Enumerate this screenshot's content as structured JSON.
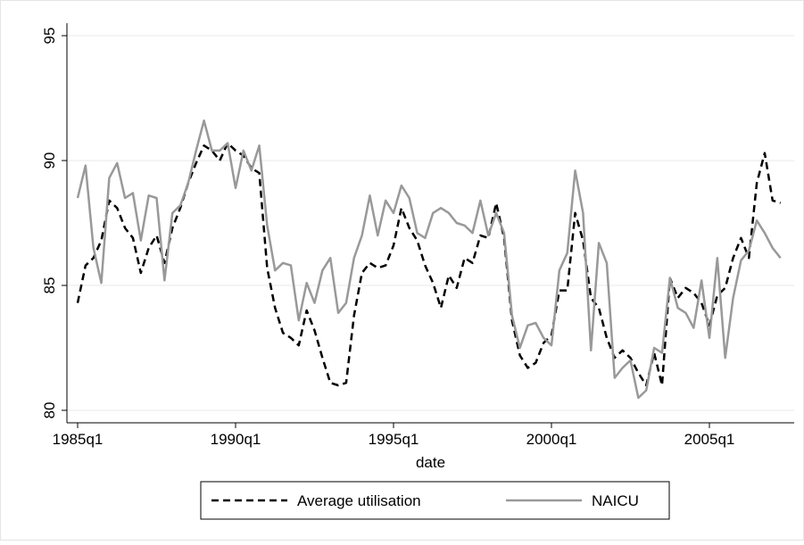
{
  "chart_data": {
    "type": "line",
    "categories": [
      "1985q1",
      null,
      null,
      null,
      null,
      null,
      null,
      null,
      null,
      null,
      null,
      null,
      null,
      null,
      null,
      null,
      null,
      null,
      null,
      null,
      "1990q1",
      null,
      null,
      null,
      null,
      null,
      null,
      null,
      null,
      null,
      null,
      null,
      null,
      null,
      null,
      null,
      null,
      null,
      null,
      null,
      "1995q1",
      null,
      null,
      null,
      null,
      null,
      null,
      null,
      null,
      null,
      null,
      null,
      null,
      null,
      null,
      null,
      null,
      null,
      null,
      null,
      "2000q1",
      null,
      null,
      null,
      null,
      null,
      null,
      null,
      null,
      null,
      null,
      null,
      null,
      null,
      null,
      null,
      null,
      null,
      null,
      null,
      "2005q1",
      null,
      null,
      null,
      null,
      null,
      null,
      null,
      null,
      null
    ],
    "x_label": "date",
    "series": [
      {
        "name": "Average utilisation",
        "color": "#000000",
        "style": "dash",
        "values": [
          84.3,
          85.8,
          86.1,
          86.8,
          88.4,
          88.1,
          87.3,
          86.9,
          85.5,
          86.5,
          87.0,
          85.9,
          87.3,
          88.1,
          89.1,
          89.9,
          90.6,
          90.4,
          90.0,
          90.7,
          90.4,
          90.2,
          89.7,
          89.5,
          85.7,
          84.1,
          83.1,
          82.9,
          82.6,
          84.0,
          83.2,
          82.1,
          81.1,
          81.0,
          81.1,
          83.8,
          85.5,
          85.9,
          85.7,
          85.8,
          86.6,
          88.1,
          87.3,
          86.8,
          85.8,
          85.1,
          84.1,
          85.4,
          84.9,
          86.1,
          85.9,
          87.0,
          86.9,
          88.3,
          86.9,
          83.6,
          82.2,
          81.7,
          81.9,
          82.7,
          83.0,
          84.8,
          84.8,
          87.9,
          86.8,
          84.5,
          84.1,
          82.9,
          82.1,
          82.4,
          82.1,
          81.5,
          81.0,
          82.3,
          81.0,
          85.3,
          84.5,
          84.9,
          84.7,
          84.3,
          83.4,
          84.6,
          84.9,
          86.1,
          86.9,
          86.1,
          89.1,
          90.3,
          88.4,
          88.3
        ]
      },
      {
        "name": "NAICU",
        "color": "#999999",
        "style": "solid",
        "values": [
          88.5,
          89.8,
          86.5,
          85.1,
          89.3,
          89.9,
          88.5,
          88.7,
          86.8,
          88.6,
          88.5,
          85.2,
          87.9,
          88.2,
          89.1,
          90.4,
          91.6,
          90.4,
          90.4,
          90.7,
          88.9,
          90.4,
          89.6,
          90.6,
          87.4,
          85.6,
          85.9,
          85.8,
          83.6,
          85.1,
          84.3,
          85.6,
          86.1,
          83.9,
          84.3,
          86.1,
          87.0,
          88.6,
          87.0,
          88.4,
          87.9,
          89.0,
          88.5,
          87.1,
          86.9,
          87.9,
          88.1,
          87.9,
          87.5,
          87.4,
          87.1,
          88.4,
          87.0,
          87.9,
          87.1,
          83.8,
          82.5,
          83.4,
          83.5,
          82.9,
          82.6,
          85.6,
          86.3,
          89.6,
          87.9,
          82.4,
          86.7,
          85.9,
          81.3,
          81.7,
          82.0,
          80.5,
          80.8,
          82.5,
          82.3,
          85.3,
          84.1,
          83.9,
          83.3,
          85.2,
          82.9,
          86.1,
          82.1,
          84.5,
          86.0,
          86.4,
          87.6,
          87.1,
          86.5,
          86.1
        ]
      }
    ],
    "ylim": [
      79.5,
      95.5
    ],
    "yticks": [
      80,
      85,
      90,
      95
    ],
    "grid": true,
    "legend": "bottom"
  }
}
